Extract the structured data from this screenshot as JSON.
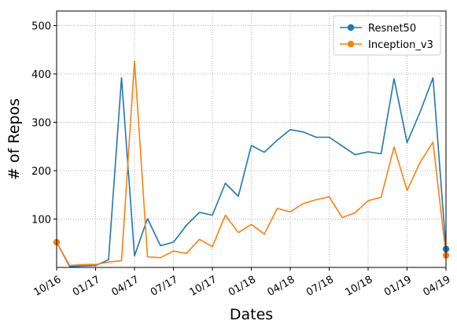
{
  "chart_data": {
    "type": "line",
    "title": "",
    "xlabel": "Dates",
    "ylabel": "# of Repos",
    "x": [
      "2016-10",
      "2016-11",
      "2016-12",
      "2017-01",
      "2017-02",
      "2017-03",
      "2017-04",
      "2017-05",
      "2017-06",
      "2017-07",
      "2017-08",
      "2017-09",
      "2017-10",
      "2017-11",
      "2017-12",
      "2018-01",
      "2018-02",
      "2018-03",
      "2018-04",
      "2018-05",
      "2018-06",
      "2018-07",
      "2018-08",
      "2018-09",
      "2018-10",
      "2018-11",
      "2018-12",
      "2019-01",
      "2019-02",
      "2019-03",
      "2019-04"
    ],
    "x_ticks": [
      "10/16",
      "01/17",
      "04/17",
      "07/17",
      "10/17",
      "01/18",
      "04/18",
      "07/18",
      "10/18",
      "01/19",
      "04/19"
    ],
    "xlim": [
      "2016-10",
      "2019-04"
    ],
    "ylim": [
      0,
      530
    ],
    "y_ticks": [
      100,
      200,
      300,
      400,
      500
    ],
    "grid": true,
    "grid_style": "dotted",
    "legend_position": "top-right",
    "series": [
      {
        "name": "Resnet50",
        "color": "#1f77b4",
        "values": [
          52,
          2,
          3,
          4,
          16,
          392,
          24,
          101,
          45,
          52,
          87,
          114,
          108,
          174,
          147,
          252,
          238,
          263,
          285,
          280,
          269,
          269,
          251,
          233,
          239,
          235,
          390,
          258,
          321,
          392,
          38
        ],
        "endpoint_markers": true
      },
      {
        "name": "Inception_v3",
        "color": "#ff7f0e",
        "values": [
          52,
          4,
          6,
          6,
          11,
          14,
          427,
          22,
          20,
          34,
          29,
          58,
          43,
          108,
          72,
          89,
          69,
          122,
          115,
          132,
          140,
          146,
          103,
          113,
          138,
          145,
          249,
          159,
          217,
          259,
          25
        ],
        "endpoint_markers": true
      }
    ]
  }
}
